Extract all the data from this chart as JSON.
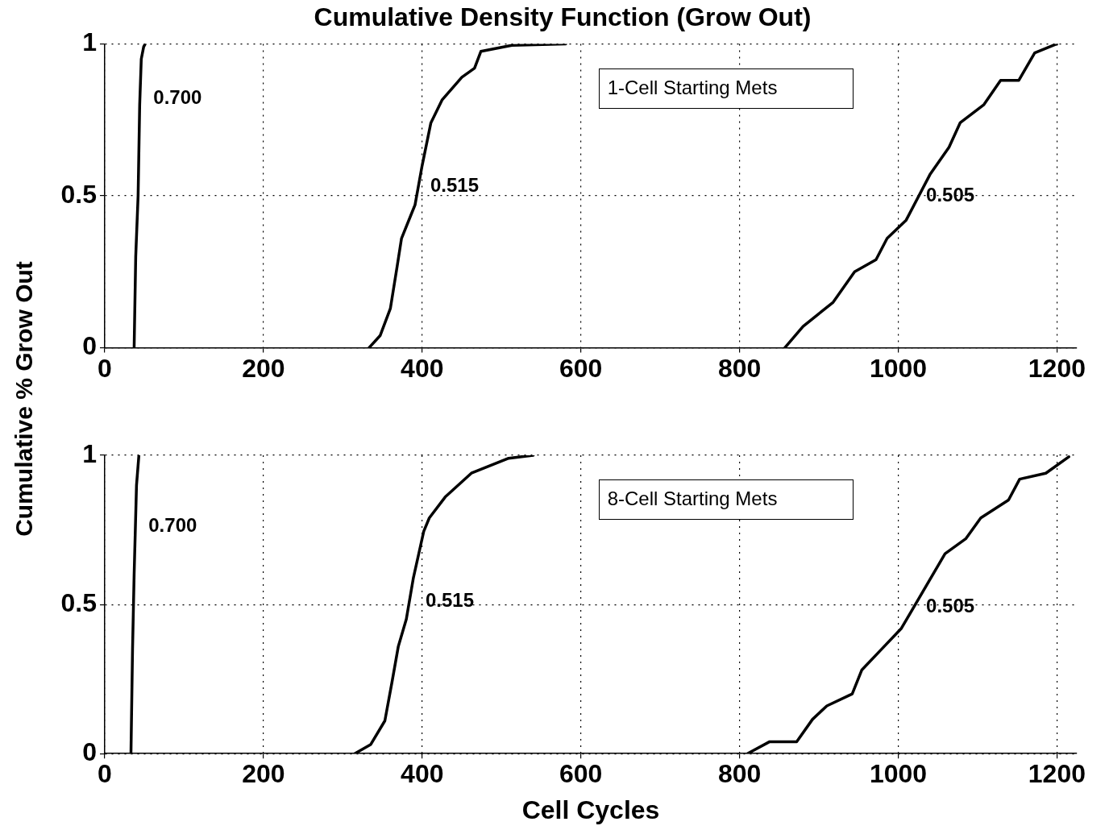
{
  "chart_data": [
    {
      "type": "line",
      "title": "Cumulative Density Function (Grow Out)",
      "ylabel": "Cumulative % Grow Out",
      "xlim": [
        0,
        1225
      ],
      "xticks": [
        0,
        200,
        400,
        600,
        800,
        1000,
        1200
      ],
      "ylim": [
        0,
        1
      ],
      "yticks": [
        0,
        0.5,
        1
      ],
      "grid": true,
      "legend": false,
      "series": [
        {
          "color": "#000000",
          "x": [
            37,
            39,
            42,
            44,
            46,
            49,
            51
          ],
          "values": [
            0,
            0.3,
            0.5,
            0.8,
            0.95,
            0.99,
            1
          ]
        },
        {
          "color": "#000000",
          "x": [
            333,
            347,
            360,
            368,
            374,
            391,
            400,
            411,
            425,
            450,
            466,
            474,
            513,
            581
          ],
          "values": [
            0,
            0.04,
            0.13,
            0.26,
            0.36,
            0.47,
            0.6,
            0.74,
            0.815,
            0.89,
            0.92,
            0.975,
            0.995,
            1
          ]
        },
        {
          "color": "#000000",
          "x": [
            857,
            880,
            918,
            945,
            972,
            986,
            1010,
            1040,
            1064,
            1078,
            1108,
            1129,
            1152,
            1172,
            1200
          ],
          "values": [
            0,
            0.07,
            0.15,
            0.25,
            0.29,
            0.36,
            0.42,
            0.57,
            0.66,
            0.74,
            0.8,
            0.88,
            0.88,
            0.97,
            1
          ]
        }
      ],
      "annotations": [
        "1-Cell Starting Mets",
        "0.700",
        "0.515",
        "0.505"
      ]
    },
    {
      "type": "line",
      "xlabel": "Cell Cycles",
      "xlim": [
        0,
        1225
      ],
      "xticks": [
        0,
        200,
        400,
        600,
        800,
        1000,
        1200
      ],
      "ylim": [
        0,
        1
      ],
      "yticks": [
        0,
        0.5,
        1
      ],
      "grid": true,
      "legend": false,
      "series": [
        {
          "color": "#000000",
          "x": [
            33,
            35,
            37,
            40,
            43
          ],
          "values": [
            0,
            0.35,
            0.6,
            0.9,
            1
          ]
        },
        {
          "color": "#000000",
          "x": [
            315,
            335,
            353,
            362,
            370,
            380,
            389,
            402,
            409,
            429,
            462,
            509,
            540
          ],
          "values": [
            0,
            0.03,
            0.11,
            0.24,
            0.36,
            0.45,
            0.59,
            0.745,
            0.79,
            0.86,
            0.94,
            0.99,
            1
          ]
        },
        {
          "color": "#000000",
          "x": [
            810,
            838,
            872,
            892,
            910,
            942,
            954,
            979,
            1004,
            1037,
            1059,
            1085,
            1104,
            1139,
            1153,
            1186,
            1215
          ],
          "values": [
            0,
            0.04,
            0.04,
            0.115,
            0.16,
            0.2,
            0.28,
            0.35,
            0.42,
            0.57,
            0.67,
            0.72,
            0.79,
            0.85,
            0.92,
            0.94,
            0.995
          ]
        }
      ],
      "annotations": [
        "8-Cell Starting Mets",
        "0.700",
        "0.515",
        "0.505"
      ]
    }
  ]
}
